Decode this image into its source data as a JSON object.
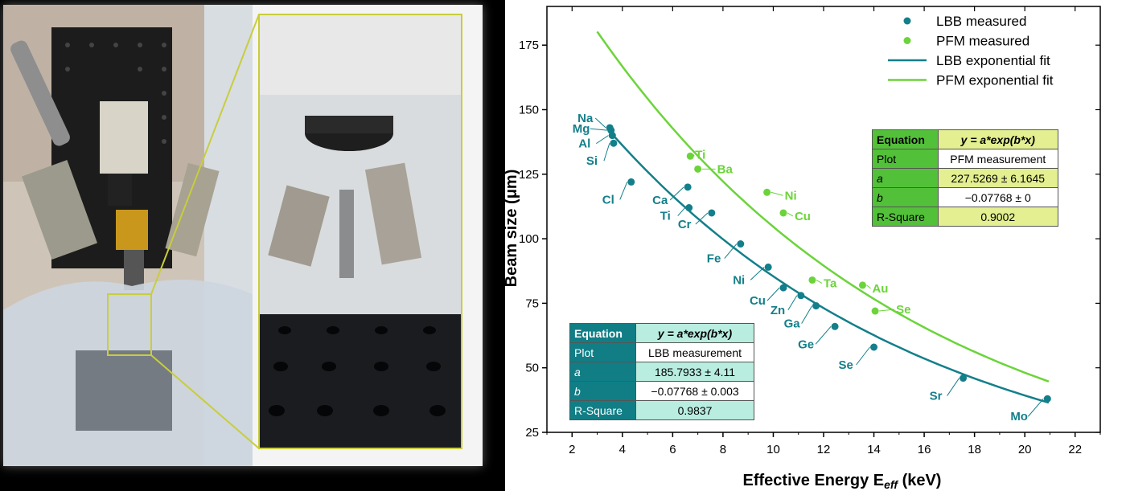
{
  "colors": {
    "lbb": "#137f8a",
    "pfm": "#6bd43a",
    "photo_outline": "#c8cd3c"
  },
  "chart_data": {
    "type": "scatter",
    "xlabel": "Effective Energy E",
    "xlabel_sub": "eff",
    "xlabel_unit": "(keV)",
    "ylabel": "Beam size (μm)",
    "xlim": [
      1,
      23
    ],
    "ylim": [
      25,
      190
    ],
    "xticks": [
      2,
      4,
      6,
      8,
      10,
      12,
      14,
      16,
      18,
      20,
      22
    ],
    "yticks": [
      25,
      50,
      75,
      100,
      125,
      150,
      175
    ],
    "grid": false,
    "legend_position": "top-right",
    "legend": [
      {
        "label": "LBB measured",
        "kind": "marker",
        "series": "lbb"
      },
      {
        "label": "PFM measured",
        "kind": "marker",
        "series": "pfm"
      },
      {
        "label": "LBB exponential fit",
        "kind": "line",
        "series": "lbb"
      },
      {
        "label": "PFM exponential fit",
        "kind": "line",
        "series": "pfm"
      }
    ],
    "series": [
      {
        "key": "lbb",
        "name": "LBB measured",
        "points": [
          {
            "label": "Na",
            "x": 3.5,
            "y": 143
          },
          {
            "label": "Mg",
            "x": 3.55,
            "y": 142
          },
          {
            "label": "Al",
            "x": 3.6,
            "y": 140
          },
          {
            "label": "Si",
            "x": 3.65,
            "y": 137
          },
          {
            "label": "Cl",
            "x": 4.35,
            "y": 122
          },
          {
            "label": "Ca",
            "x": 6.6,
            "y": 120
          },
          {
            "label": "Ti",
            "x": 6.65,
            "y": 112
          },
          {
            "label": "Cr",
            "x": 7.55,
            "y": 110
          },
          {
            "label": "Fe",
            "x": 8.7,
            "y": 98
          },
          {
            "label": "Ni",
            "x": 9.8,
            "y": 89
          },
          {
            "label": "Cu",
            "x": 10.4,
            "y": 81
          },
          {
            "label": "Zn",
            "x": 11.1,
            "y": 78
          },
          {
            "label": "Ga",
            "x": 11.7,
            "y": 74
          },
          {
            "label": "Ge",
            "x": 12.45,
            "y": 66
          },
          {
            "label": "Se",
            "x": 14.0,
            "y": 58
          },
          {
            "label": "Sr",
            "x": 17.55,
            "y": 46
          },
          {
            "label": "Mo",
            "x": 20.9,
            "y": 38
          }
        ]
      },
      {
        "key": "pfm",
        "name": "PFM measured",
        "points": [
          {
            "label": "Ti",
            "x": 6.7,
            "y": 132
          },
          {
            "label": "Ba",
            "x": 7.0,
            "y": 127
          },
          {
            "label": "Ni",
            "x": 9.75,
            "y": 118
          },
          {
            "label": "Cu",
            "x": 10.4,
            "y": 110
          },
          {
            "label": "Ta",
            "x": 11.55,
            "y": 84
          },
          {
            "label": "Au",
            "x": 13.55,
            "y": 82
          },
          {
            "label": "Se",
            "x": 14.05,
            "y": 72
          }
        ]
      }
    ],
    "fits": [
      {
        "key": "lbb",
        "name": "LBB exponential fit",
        "a": 185.7933,
        "b": -0.07768,
        "x_range": [
          3.6,
          20.95
        ]
      },
      {
        "key": "pfm",
        "name": "PFM exponential fit",
        "a": 227.5269,
        "b": -0.07768,
        "x_range": [
          3.0,
          20.95
        ]
      }
    ]
  },
  "tables": {
    "lbb": {
      "equation_label": "Equation",
      "equation": "y = a*exp(b*x)",
      "plot_label": "Plot",
      "plot": "LBB measurement",
      "a_label": "a",
      "a": "185.7933 ± 4.11",
      "b_label": "b",
      "b": "−0.07768 ± 0.003",
      "r2_label": "R-Square",
      "r2": "0.9837"
    },
    "pfm": {
      "equation_label": "Equation",
      "equation": "y = a*exp(b*x)",
      "plot_label": "Plot",
      "plot": "PFM measurement",
      "a_label": "a",
      "a": "227.5269 ± 6.1645",
      "b_label": "b",
      "b": "−0.07768 ± 0",
      "r2_label": "R-Square",
      "r2": "0.9002"
    }
  }
}
